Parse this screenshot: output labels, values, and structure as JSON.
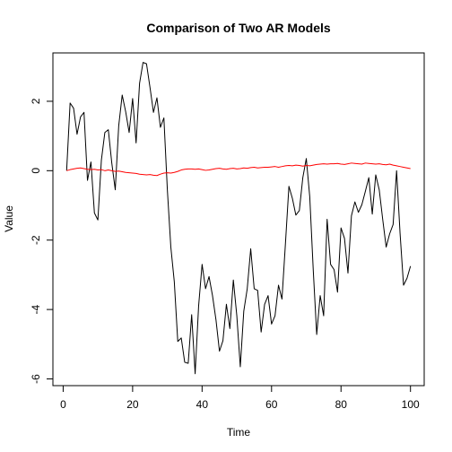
{
  "chart_data": {
    "type": "line",
    "title": "Comparison of Two AR Models",
    "xlabel": "Time",
    "ylabel": "Value",
    "xlim": [
      1,
      100
    ],
    "ylim": [
      -6,
      3.2
    ],
    "x_ticks": [
      0,
      20,
      40,
      60,
      80,
      100
    ],
    "y_ticks": [
      -6,
      -4,
      -2,
      0,
      2
    ],
    "grid": false,
    "series": [
      {
        "color": "#000000",
        "values": [
          0.0,
          1.95,
          1.8,
          1.05,
          1.55,
          1.68,
          -0.28,
          0.25,
          -1.22,
          -1.42,
          0.3,
          1.1,
          1.18,
          0.22,
          -0.55,
          1.3,
          2.18,
          1.7,
          1.1,
          2.08,
          0.8,
          2.52,
          3.12,
          3.08,
          2.4,
          1.68,
          2.1,
          1.25,
          1.52,
          -0.55,
          -2.2,
          -3.2,
          -4.92,
          -4.82,
          -5.52,
          -5.55,
          -4.15,
          -5.85,
          -3.9,
          -2.7,
          -3.4,
          -3.05,
          -3.6,
          -4.3,
          -5.2,
          -4.9,
          -3.85,
          -4.55,
          -3.15,
          -4.18,
          -5.65,
          -4.05,
          -3.4,
          -2.25,
          -3.4,
          -3.45,
          -4.65,
          -3.85,
          -3.6,
          -4.42,
          -4.18,
          -3.3,
          -3.7,
          -2.1,
          -0.45,
          -0.8,
          -1.28,
          -1.15,
          -0.2,
          0.35,
          -0.75,
          -2.85,
          -4.72,
          -3.6,
          -4.18,
          -1.4,
          -2.7,
          -2.85,
          -3.5,
          -1.65,
          -1.95,
          -2.95,
          -1.3,
          -0.9,
          -1.2,
          -0.98,
          -0.6,
          -0.2,
          -1.25,
          -0.12,
          -0.55,
          -1.4,
          -2.2,
          -1.82,
          -1.55,
          0.0,
          -1.8,
          -3.3,
          -3.1,
          -2.75
        ]
      },
      {
        "color": "#ff0000",
        "values": [
          0.0,
          0.03,
          0.05,
          0.07,
          0.08,
          0.06,
          0.04,
          0.03,
          0.04,
          0.02,
          0.03,
          0.0,
          0.02,
          0.0,
          -0.02,
          -0.01,
          -0.03,
          -0.05,
          -0.06,
          -0.07,
          -0.08,
          -0.1,
          -0.11,
          -0.12,
          -0.11,
          -0.13,
          -0.14,
          -0.1,
          -0.07,
          -0.06,
          -0.07,
          -0.05,
          -0.02,
          0.02,
          0.04,
          0.05,
          0.05,
          0.04,
          0.05,
          0.03,
          0.01,
          0.02,
          0.04,
          0.06,
          0.07,
          0.05,
          0.04,
          0.06,
          0.07,
          0.05,
          0.06,
          0.08,
          0.07,
          0.09,
          0.1,
          0.08,
          0.09,
          0.1,
          0.1,
          0.11,
          0.12,
          0.1,
          0.12,
          0.14,
          0.15,
          0.14,
          0.16,
          0.15,
          0.13,
          0.15,
          0.14,
          0.16,
          0.18,
          0.19,
          0.2,
          0.19,
          0.2,
          0.2,
          0.21,
          0.19,
          0.18,
          0.2,
          0.22,
          0.21,
          0.2,
          0.19,
          0.22,
          0.21,
          0.2,
          0.19,
          0.2,
          0.18,
          0.17,
          0.19,
          0.16,
          0.14,
          0.12,
          0.1,
          0.08,
          0.06
        ]
      }
    ]
  }
}
